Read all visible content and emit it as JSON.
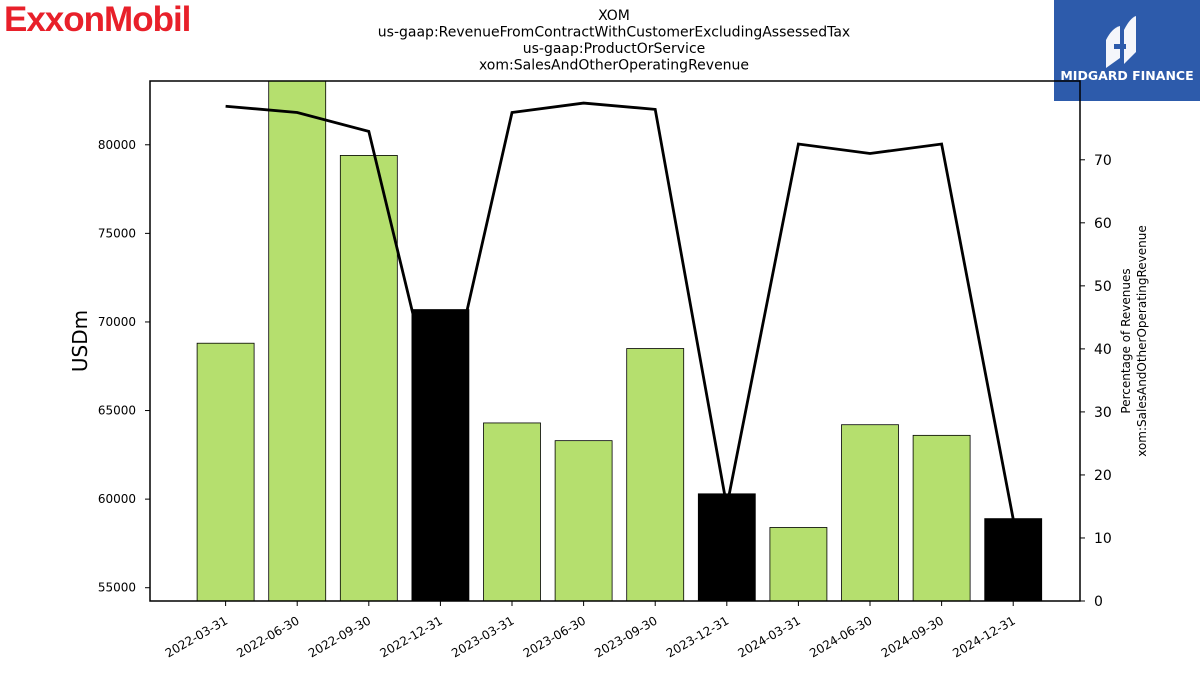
{
  "logo": "ExxonMobil",
  "brand": {
    "name": "MIDGARD FINANCE",
    "color": "#2d5bab"
  },
  "chart_data": {
    "type": "bar",
    "title": [
      "XOM",
      "us-gaap:RevenueFromContractWithCustomerExcludingAssessedTax",
      "us-gaap:ProductOrService",
      "xom:SalesAndOtherOperatingRevenue"
    ],
    "ylabel": "USDm",
    "ylabel_right": [
      "Percentage of Revenues",
      "xom:SalesAndOtherOperatingRevenue"
    ],
    "categories": [
      "2022-03-31",
      "2022-06-30",
      "2022-09-30",
      "2022-12-31",
      "2023-03-31",
      "2023-06-30",
      "2023-09-30",
      "2023-12-31",
      "2024-03-31",
      "2024-06-30",
      "2024-09-30",
      "2024-12-31"
    ],
    "values": [
      68800,
      83800,
      79400,
      70700,
      64300,
      63300,
      68500,
      60300,
      58400,
      64200,
      63600,
      58900
    ],
    "bar_colors": [
      "#b5df6e",
      "#b5df6e",
      "#b5df6e",
      "#000000",
      "#b5df6e",
      "#b5df6e",
      "#b5df6e",
      "#000000",
      "#b5df6e",
      "#b5df6e",
      "#b5df6e",
      "#000000"
    ],
    "line_values": [
      78.5,
      77.5,
      74.5,
      27.5,
      77.5,
      79,
      78,
      15,
      72.5,
      71,
      72.5,
      13
    ],
    "ylim": [
      54250,
      83600
    ],
    "yticks": [
      55000,
      60000,
      65000,
      70000,
      75000,
      80000
    ],
    "y2lim": [
      0,
      82.5
    ],
    "y2ticks": [
      0,
      10,
      20,
      30,
      40,
      50,
      60,
      70
    ],
    "grid": false
  }
}
